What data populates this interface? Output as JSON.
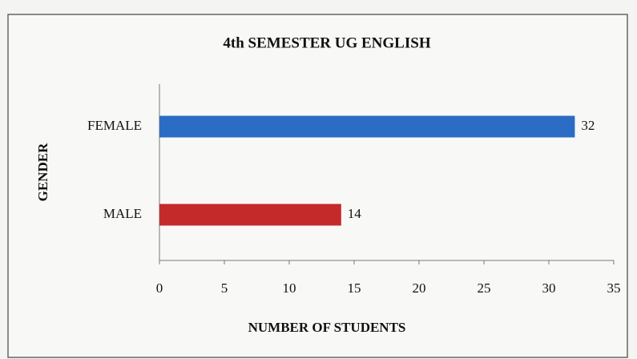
{
  "chart_data": {
    "type": "bar",
    "orientation": "horizontal",
    "title": "4th SEMESTER UG ENGLISH",
    "categories": [
      "FEMALE",
      "MALE"
    ],
    "values": [
      32,
      14
    ],
    "colors": [
      "#2b6cc4",
      "#c42a2a"
    ],
    "xlabel": "NUMBER OF STUDENTS",
    "ylabel": "GENDER",
    "xlim": [
      0,
      35
    ],
    "xticks": [
      0,
      5,
      10,
      15,
      20,
      25,
      30,
      35
    ],
    "grid": false
  }
}
